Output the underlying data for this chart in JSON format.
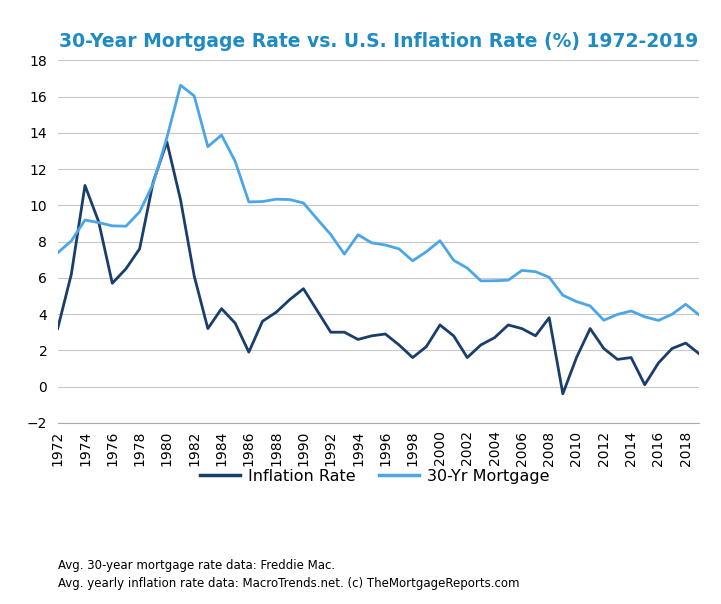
{
  "title": "30-Year Mortgage Rate vs. U.S. Inflation Rate (%) 1972-2019",
  "title_color": "#1E8BC3",
  "footnote1": "Avg. 30-year mortgage rate data: Freddie Mac.",
  "footnote2": "Avg. yearly inflation rate data: MacroTrends.net. (c) TheMortgageReports.com",
  "years": [
    1972,
    1973,
    1974,
    1975,
    1976,
    1977,
    1978,
    1979,
    1980,
    1981,
    1982,
    1983,
    1984,
    1985,
    1986,
    1987,
    1988,
    1989,
    1990,
    1991,
    1992,
    1993,
    1994,
    1995,
    1996,
    1997,
    1998,
    1999,
    2000,
    2001,
    2002,
    2003,
    2004,
    2005,
    2006,
    2007,
    2008,
    2009,
    2010,
    2011,
    2012,
    2013,
    2014,
    2015,
    2016,
    2017,
    2018,
    2019
  ],
  "inflation": [
    3.2,
    6.2,
    11.1,
    9.1,
    5.7,
    6.5,
    7.6,
    11.3,
    13.5,
    10.3,
    6.1,
    3.2,
    4.3,
    3.5,
    1.9,
    3.6,
    4.1,
    4.8,
    5.4,
    4.2,
    3.0,
    3.0,
    2.6,
    2.8,
    2.9,
    2.3,
    1.6,
    2.2,
    3.4,
    2.8,
    1.6,
    2.3,
    2.7,
    3.4,
    3.2,
    2.8,
    3.8,
    -0.4,
    1.6,
    3.2,
    2.1,
    1.5,
    1.6,
    0.1,
    1.3,
    2.1,
    2.4,
    1.8
  ],
  "mortgage": [
    7.38,
    8.04,
    9.19,
    9.05,
    8.87,
    8.85,
    9.64,
    11.2,
    13.74,
    16.63,
    16.04,
    13.24,
    13.88,
    12.43,
    10.19,
    10.21,
    10.34,
    10.32,
    10.13,
    9.25,
    8.39,
    7.31,
    8.38,
    7.93,
    7.81,
    7.6,
    6.94,
    7.44,
    8.05,
    6.97,
    6.54,
    5.83,
    5.84,
    5.87,
    6.41,
    6.34,
    6.03,
    5.04,
    4.69,
    4.45,
    3.66,
    3.98,
    4.17,
    3.85,
    3.65,
    3.99,
    4.54,
    3.94
  ],
  "inflation_color": "#1A3E6C",
  "mortgage_color": "#4BA6E8",
  "ylim": [
    -2,
    18
  ],
  "yticks": [
    -2,
    0,
    2,
    4,
    6,
    8,
    10,
    12,
    14,
    16,
    18
  ],
  "xtick_step": 2,
  "background_color": "#ffffff",
  "grid_color": "#c8c8c8",
  "legend_inflation": "Inflation Rate",
  "legend_mortgage": "30-Yr Mortgage"
}
